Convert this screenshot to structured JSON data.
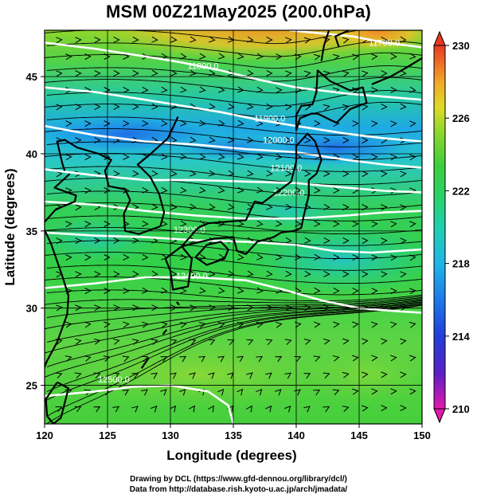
{
  "title": "MSM 00Z21May2025 (200.0hPa)",
  "x_axis": {
    "label": "Longitude (degrees)",
    "ticks": [
      "120",
      "125",
      "130",
      "135",
      "140",
      "145",
      "150"
    ]
  },
  "y_axis": {
    "label": "Latitude  (degrees)",
    "ticks": [
      "25",
      "30",
      "35",
      "40",
      "45"
    ]
  },
  "colorbar": {
    "ticks": [
      "230",
      "226",
      "222",
      "218",
      "214",
      "210"
    ]
  },
  "contour_labels": [
    "11800.0",
    "11900.0",
    "12000.0",
    "12100.0",
    "12200.0",
    "12300.0",
    "12400.0",
    "12500.0",
    "11700.0"
  ],
  "credits": {
    "line1": "Drawing by DCL (https://www.gfd-dennou.org/library/dcl/)",
    "line2": "Data from http://database.rish.kyoto-u.ac.jp/arch/jmadata/"
  },
  "colors": {
    "field_green": "#35d04a",
    "field_cyan": "#1ac8d2",
    "field_blue": "#2a86f0",
    "field_orange": "#f2a628",
    "contour": "#ffffff",
    "streamline": "#000000"
  },
  "map_data": {
    "lon_range": [
      120,
      150
    ],
    "lat_range": [
      22.5,
      48
    ],
    "colorbar_range": [
      210,
      230
    ],
    "contours": [
      {
        "label": "11700.0",
        "points": [
          [
            139.5,
            48
          ],
          [
            142,
            47.8
          ],
          [
            144.5,
            47.6
          ],
          [
            147,
            47.2
          ],
          [
            150,
            46.9
          ]
        ],
        "label_at": [
          147,
          47.2
        ]
      },
      {
        "label": "11800.0",
        "points": [
          [
            120,
            47.2
          ],
          [
            124,
            46.8
          ],
          [
            128,
            46.3
          ],
          [
            131,
            45.9
          ],
          [
            134,
            45.4
          ],
          [
            137,
            44.8
          ],
          [
            140,
            44.3
          ],
          [
            144,
            43.9
          ],
          [
            147,
            43.7
          ],
          [
            150,
            43.5
          ]
        ],
        "label_at": [
          132.6,
          45.7
        ]
      },
      {
        "label": "11900.0",
        "points": [
          [
            120,
            44.3
          ],
          [
            124,
            44.0
          ],
          [
            128,
            43.5
          ],
          [
            131,
            43.1
          ],
          [
            134,
            42.7
          ],
          [
            137,
            42.2
          ],
          [
            140,
            41.8
          ],
          [
            144,
            41.3
          ],
          [
            147,
            41.0
          ],
          [
            150,
            40.8
          ]
        ],
        "label_at": [
          137.9,
          42.3
        ]
      },
      {
        "label": "12000.0",
        "points": [
          [
            120,
            41.8
          ],
          [
            124,
            41.2
          ],
          [
            128,
            40.8
          ],
          [
            132,
            40.6
          ],
          [
            136,
            40.3
          ],
          [
            140,
            40.1
          ],
          [
            144,
            39.6
          ],
          [
            147,
            39.3
          ],
          [
            150,
            39.1
          ]
        ],
        "label_at": [
          138.6,
          40.9
        ]
      },
      {
        "label": "12100.0",
        "points": [
          [
            120,
            39.0
          ],
          [
            124,
            38.6
          ],
          [
            128,
            38.3
          ],
          [
            132,
            38.3
          ],
          [
            136,
            38.2
          ],
          [
            140,
            38.1
          ],
          [
            144,
            37.8
          ],
          [
            147,
            37.6
          ],
          [
            150,
            37.5
          ]
        ],
        "label_at": [
          139.2,
          39.1
        ]
      },
      {
        "label": "12200.0",
        "points": [
          [
            120,
            36.9
          ],
          [
            124,
            36.7
          ],
          [
            128,
            36.3
          ],
          [
            132,
            36.0
          ],
          [
            136,
            35.8
          ],
          [
            140,
            35.8
          ],
          [
            144,
            36.0
          ],
          [
            147,
            36.2
          ],
          [
            150,
            36.3
          ]
        ],
        "label_at": [
          139.4,
          37.5
        ]
      },
      {
        "label": "12300.0",
        "points": [
          [
            120,
            34.9
          ],
          [
            124,
            34.7
          ],
          [
            128,
            34.6
          ],
          [
            132,
            34.4
          ],
          [
            136,
            34.3
          ],
          [
            140,
            34.1
          ],
          [
            143,
            33.7
          ],
          [
            146,
            33.6
          ],
          [
            150,
            33.8
          ]
        ],
        "label_at": [
          131.5,
          35.1
        ]
      },
      {
        "label": "12400.0",
        "points": [
          [
            120,
            31.3
          ],
          [
            124,
            31.6
          ],
          [
            128,
            32.0
          ],
          [
            132,
            32.0
          ],
          [
            136,
            31.8
          ],
          [
            139,
            31.2
          ],
          [
            142,
            30.5
          ],
          [
            145,
            30.0
          ],
          [
            148,
            29.8
          ],
          [
            150,
            29.7
          ]
        ],
        "label_at": [
          131.7,
          32.1
        ]
      },
      {
        "label": "12500.0",
        "points": [
          [
            120,
            24.3
          ],
          [
            124,
            24.6
          ],
          [
            127,
            24.9
          ],
          [
            130,
            25.0
          ],
          [
            133,
            24.6
          ],
          [
            134.6,
            23.7
          ],
          [
            135.0,
            22.5
          ]
        ],
        "label_at": [
          125.5,
          25.4
        ]
      }
    ],
    "coastlines": [
      [
        [
          129.2,
          35.3
        ],
        [
          127.5,
          34.8
        ],
        [
          126.4,
          35.0
        ],
        [
          126.3,
          36.1
        ],
        [
          126.8,
          37.0
        ],
        [
          126.4,
          37.7
        ],
        [
          125.1,
          37.9
        ],
        [
          124.8,
          38.9
        ],
        [
          125.3,
          39.6
        ],
        [
          124.3,
          40.0
        ],
        [
          122.6,
          40.4
        ],
        [
          121.6,
          40.9
        ],
        [
          121.0,
          40.8
        ],
        [
          121.4,
          39.4
        ],
        [
          121.6,
          38.9
        ]
      ],
      [
        [
          130.6,
          42.4
        ],
        [
          129.8,
          41.0
        ],
        [
          128.3,
          39.9
        ],
        [
          127.4,
          39.3
        ],
        [
          128.4,
          38.5
        ],
        [
          129.1,
          37.4
        ],
        [
          129.5,
          36.2
        ],
        [
          129.2,
          35.3
        ]
      ],
      [
        [
          122.0,
          38.7
        ],
        [
          120.8,
          37.8
        ],
        [
          122.5,
          37.3
        ],
        [
          122.4,
          36.9
        ],
        [
          120.9,
          36.4
        ],
        [
          119.8,
          35.4
        ],
        [
          120.5,
          34.2
        ],
        [
          121.4,
          32.1
        ],
        [
          121.9,
          30.8
        ],
        [
          121.8,
          29.6
        ],
        [
          121.0,
          27.8
        ],
        [
          120.2,
          26.6
        ],
        [
          119.6,
          25.4
        ]
      ],
      [
        [
          130.9,
          34.0
        ],
        [
          131.7,
          33.2
        ],
        [
          131.4,
          31.4
        ],
        [
          130.2,
          31.2
        ],
        [
          130.0,
          32.4
        ],
        [
          129.6,
          33.2
        ],
        [
          130.4,
          33.7
        ],
        [
          130.9,
          34.0
        ]
      ],
      [
        [
          130.9,
          34.0
        ],
        [
          132.4,
          34.3
        ],
        [
          133.5,
          34.5
        ],
        [
          135.0,
          34.6
        ],
        [
          135.3,
          33.7
        ],
        [
          136.0,
          33.5
        ],
        [
          136.9,
          34.3
        ],
        [
          138.2,
          34.6
        ],
        [
          138.8,
          34.9
        ],
        [
          139.8,
          35.0
        ],
        [
          140.4,
          35.2
        ],
        [
          140.6,
          36.0
        ],
        [
          141.0,
          37.3
        ],
        [
          141.0,
          38.3
        ],
        [
          141.6,
          38.7
        ],
        [
          142.0,
          39.6
        ],
        [
          141.5,
          40.8
        ],
        [
          140.9,
          41.3
        ],
        [
          140.0,
          40.5
        ],
        [
          140.0,
          39.5
        ],
        [
          139.6,
          38.2
        ],
        [
          138.6,
          37.6
        ],
        [
          137.3,
          36.8
        ],
        [
          136.7,
          36.9
        ],
        [
          136.0,
          35.7
        ],
        [
          133.0,
          35.5
        ],
        [
          132.2,
          35.2
        ],
        [
          130.9,
          34.0
        ]
      ],
      [
        [
          132.0,
          33.3
        ],
        [
          132.9,
          32.8
        ],
        [
          134.3,
          33.2
        ],
        [
          134.6,
          33.8
        ],
        [
          134.0,
          34.3
        ],
        [
          132.9,
          34.1
        ],
        [
          132.0,
          33.3
        ]
      ],
      [
        [
          140.0,
          41.5
        ],
        [
          140.3,
          42.3
        ],
        [
          141.2,
          42.6
        ],
        [
          141.7,
          42.6
        ],
        [
          143.2,
          42.0
        ],
        [
          144.3,
          42.9
        ],
        [
          145.6,
          43.3
        ],
        [
          145.3,
          44.3
        ],
        [
          144.3,
          44.1
        ],
        [
          142.7,
          44.7
        ],
        [
          141.7,
          45.4
        ],
        [
          141.6,
          44.0
        ],
        [
          141.3,
          43.2
        ],
        [
          140.4,
          43.1
        ],
        [
          140.0,
          42.5
        ],
        [
          140.0,
          41.5
        ]
      ],
      [
        [
          142.0,
          46.0
        ],
        [
          142.2,
          47.0
        ],
        [
          142.6,
          48.0
        ]
      ],
      [
        [
          143.4,
          46.9
        ],
        [
          143.1,
          47.6
        ],
        [
          144.2,
          48.0
        ]
      ],
      [
        [
          146.0,
          44.5
        ],
        [
          147.5,
          45.0
        ],
        [
          148.8,
          45.6
        ],
        [
          150.0,
          46.2
        ]
      ],
      [
        [
          121.0,
          25.2
        ],
        [
          121.9,
          24.8
        ],
        [
          121.3,
          22.9
        ],
        [
          120.7,
          22.5
        ],
        [
          120.2,
          23.0
        ],
        [
          120.1,
          24.1
        ],
        [
          121.0,
          25.2
        ]
      ],
      [
        [
          127.7,
          26.1
        ],
        [
          128.3,
          26.8
        ]
      ],
      [
        [
          129.4,
          28.3
        ],
        [
          129.7,
          28.6
        ]
      ],
      [
        [
          130.5,
          30.4
        ],
        [
          130.7,
          30.2
        ]
      ]
    ]
  }
}
